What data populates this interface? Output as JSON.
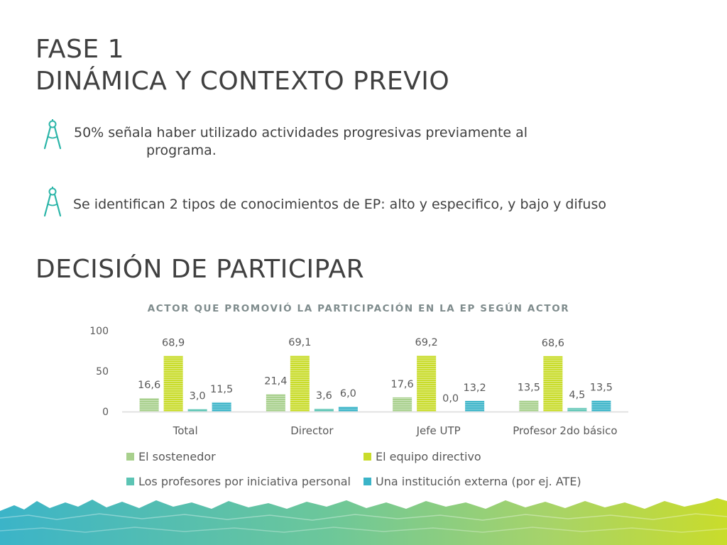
{
  "slide": {
    "title_line1": "FASE 1",
    "title_line2": "DINÁMICA Y CONTEXTO PREVIO",
    "section_title": "DECISIÓN DE PARTICIPAR"
  },
  "bullets": [
    {
      "icon": "compass-icon",
      "text_line1": "50% señala haber utilizado actividades progresivas previamente al",
      "text_line2": "programa."
    },
    {
      "icon": "compass-icon",
      "text_line1": "Se identifican 2 tipos de conocimientos de EP: alto y especifico, y bajo y difuso"
    }
  ],
  "colors": {
    "title": "#404040",
    "icon": "#2bb5a8",
    "sostenedor": "#a8d08d",
    "equipo": "#c9dc2b",
    "profesores": "#5cc4b4",
    "institucion": "#3bb4c8"
  },
  "chart_data": {
    "type": "bar",
    "title": "ACTOR QUE PROMOVIÓ LA PARTICIPACIÓN EN LA EP SEGÚN ACTOR",
    "categories": [
      "Total",
      "Director",
      "Jefe UTP",
      "Profesor 2do básico"
    ],
    "series": [
      {
        "name": "El sostenedor",
        "values": [
          16.6,
          21.4,
          17.6,
          13.5
        ],
        "labels": [
          "16,6",
          "21,4",
          "17,6",
          "13,5"
        ]
      },
      {
        "name": "El equipo directivo",
        "values": [
          68.9,
          69.1,
          69.2,
          68.6
        ],
        "labels": [
          "68,9",
          "69,1",
          "69,2",
          "68,6"
        ]
      },
      {
        "name": "Los profesores por iniciativa personal",
        "values": [
          3.0,
          3.6,
          0.0,
          4.5
        ],
        "labels": [
          "3,0",
          "3,6",
          "0,0",
          "4,5"
        ]
      },
      {
        "name": "Una institución externa (por ej. ATE)",
        "values": [
          11.5,
          6.0,
          13.2,
          13.5
        ],
        "labels": [
          "11,5",
          "6,0",
          "13,2",
          "13,5"
        ]
      }
    ],
    "ylim": [
      0,
      100
    ],
    "yticks": [
      "0",
      "50",
      "100"
    ],
    "grid": false,
    "legend": "bottom"
  }
}
